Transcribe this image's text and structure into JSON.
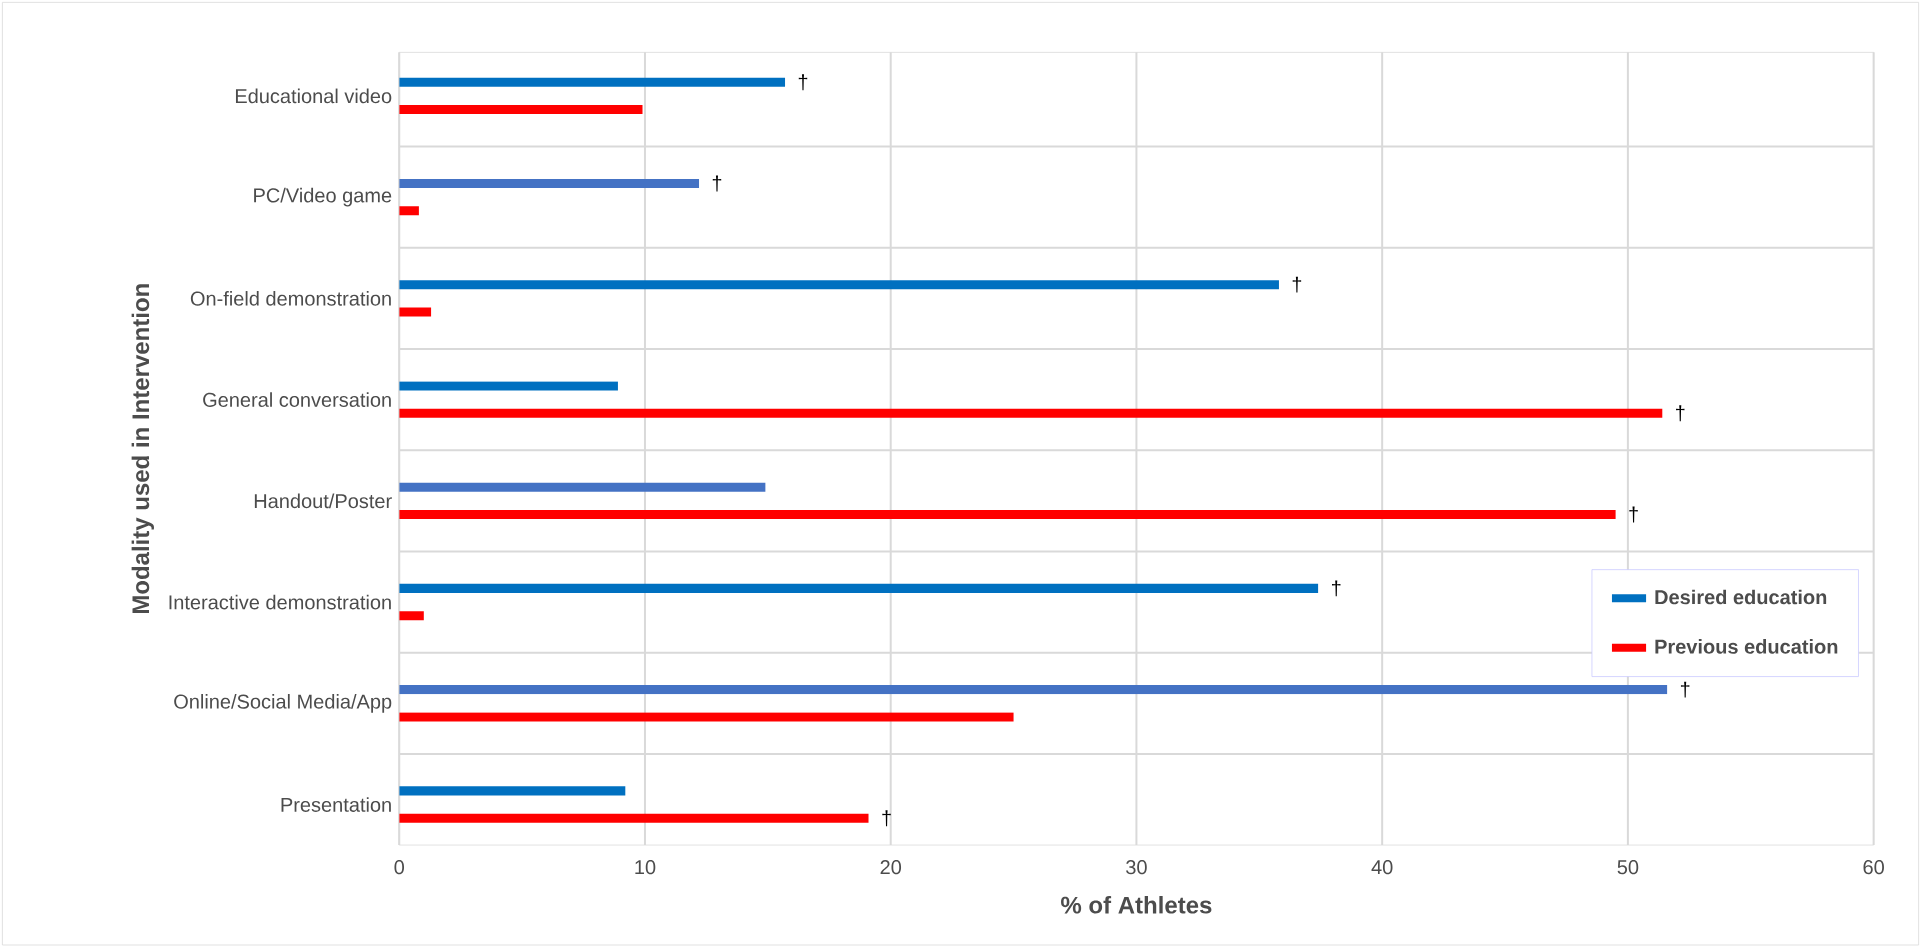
{
  "chart_data": {
    "type": "bar",
    "orientation": "horizontal",
    "xlabel": "% of Athletes",
    "ylabel": "Modality used in Intervention",
    "categories": [
      "Educational video",
      "PC/Video game",
      "On-field demonstration",
      "General conversation",
      "Handout/Poster",
      "Interactive demonstration",
      "Online/Social Media/App",
      "Presentation"
    ],
    "series": [
      {
        "name": "Desired education",
        "color": "#0070c0",
        "colors": [
          "#0070c0",
          "#4472c4",
          "#0070c0",
          "#0070c0",
          "#4472c4",
          "#0070c0",
          "#4472c4",
          "#0070c0"
        ],
        "values": [
          15.7,
          12.2,
          35.8,
          8.9,
          14.9,
          37.4,
          51.6,
          9.2
        ],
        "value_labels": [
          "†",
          "†",
          "†",
          null,
          null,
          "†",
          "†",
          null
        ]
      },
      {
        "name": "Previous education",
        "color": "#ff0000",
        "values": [
          9.9,
          0.8,
          1.3,
          51.4,
          49.5,
          1.0,
          25.0,
          19.1
        ],
        "value_labels": [
          null,
          null,
          null,
          "†",
          "†",
          null,
          null,
          "†"
        ]
      }
    ],
    "xlim": [
      0,
      60
    ],
    "xticks": [
      0,
      10,
      20,
      30,
      40,
      50,
      60
    ],
    "grid": true,
    "legend": "right"
  }
}
